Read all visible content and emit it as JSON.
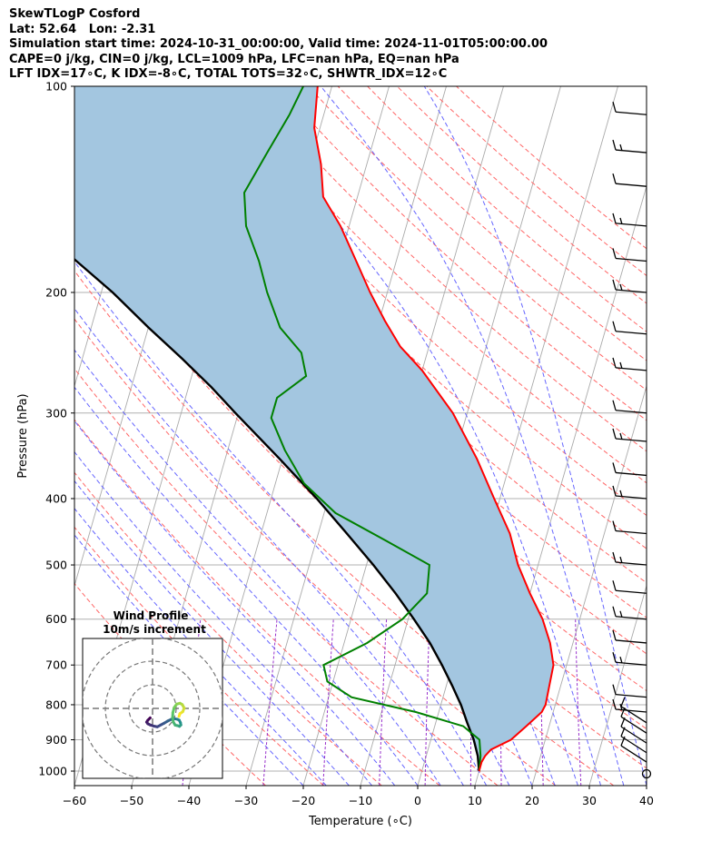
{
  "header": {
    "line1": "SkewTLogP Cosford",
    "line2": "Lat: 52.64   Lon: -2.31",
    "line3": "Simulation start time: 2024-10-31_00:00:00, Valid time: 2024-11-01T05:00:00.00",
    "line4": "CAPE=0 j/kg, CIN=0 j/kg, LCL=1009 hPa, LFC=nan hPa, EQ=nan hPa",
    "line5": "LFT IDX=17∘C, K IDX=-8∘C, TOTAL TOTS=32∘C, SHWTR_IDX=12∘C"
  },
  "chart_data": {
    "type": "line",
    "subtype": "skew-t log-p",
    "xlabel": "Temperature (∘C)",
    "ylabel": "Pressure (hPa)",
    "xlim": [
      -60,
      40
    ],
    "ylim": [
      1050,
      100
    ],
    "yscale": "log",
    "x_ticks": [
      -60,
      -50,
      -40,
      -30,
      -20,
      -10,
      0,
      10,
      20,
      30,
      40
    ],
    "x_tick_labels": [
      "−60",
      "−50",
      "−40",
      "−30",
      "−20",
      "−10",
      "0",
      "10",
      "20",
      "30",
      "40"
    ],
    "y_ticks": [
      1000,
      900,
      800,
      700,
      600,
      500,
      400,
      300,
      200,
      100
    ],
    "y_tick_labels": [
      "1000",
      "900",
      "800",
      "700",
      "600",
      "500",
      "400",
      "300",
      "200",
      "100"
    ],
    "grid": true,
    "colors": {
      "temperature": "#ff0000",
      "dewpoint": "#008000",
      "parcel": "#000000",
      "shade": "#a3c6e0",
      "dry_adiabat": "#ff6666",
      "moist_adiabat": "#6666ff",
      "mixing_ratio": "#9932cc",
      "isotherm": "#aaaaaa"
    },
    "series": [
      {
        "key": "temperature",
        "points": [
          [
            10,
            1000
          ],
          [
            10,
            970
          ],
          [
            10.3,
            950
          ],
          [
            11,
            930
          ],
          [
            14,
            900
          ],
          [
            16,
            860
          ],
          [
            18,
            820
          ],
          [
            18.3,
            800
          ],
          [
            18,
            750
          ],
          [
            17.7,
            700
          ],
          [
            16,
            650
          ],
          [
            13.5,
            600
          ],
          [
            10,
            550
          ],
          [
            6.5,
            500
          ],
          [
            3.5,
            450
          ],
          [
            -1,
            400
          ],
          [
            -6,
            350
          ],
          [
            -12.5,
            300
          ],
          [
            -20,
            260
          ],
          [
            -25,
            240
          ],
          [
            -29,
            220
          ],
          [
            -33,
            200
          ],
          [
            -37,
            180
          ],
          [
            -41.5,
            160
          ],
          [
            -46,
            145
          ],
          [
            -48,
            130
          ],
          [
            -51,
            115
          ],
          [
            -52.5,
            100
          ]
        ]
      },
      {
        "key": "dewpoint",
        "points": [
          [
            10,
            1000
          ],
          [
            9.5,
            950
          ],
          [
            8.5,
            900
          ],
          [
            5,
            860
          ],
          [
            -4,
            820
          ],
          [
            -16,
            780
          ],
          [
            -21,
            740
          ],
          [
            -22.5,
            700
          ],
          [
            -16,
            650
          ],
          [
            -11,
            600
          ],
          [
            -8,
            550
          ],
          [
            -9,
            500
          ],
          [
            -18,
            460
          ],
          [
            -28,
            420
          ],
          [
            -35,
            380
          ],
          [
            -40,
            340
          ],
          [
            -44,
            305
          ],
          [
            -44,
            285
          ],
          [
            -40,
            265
          ],
          [
            -42,
            245
          ],
          [
            -47,
            225
          ],
          [
            -51,
            200
          ],
          [
            -54,
            180
          ],
          [
            -58,
            160
          ],
          [
            -60,
            143
          ],
          [
            -58,
            125
          ],
          [
            -56,
            110
          ],
          [
            -55,
            100
          ]
        ]
      },
      {
        "key": "parcel",
        "points": [
          [
            10,
            1000
          ],
          [
            9,
            950
          ],
          [
            7.5,
            900
          ],
          [
            5.5,
            850
          ],
          [
            3.5,
            800
          ],
          [
            1,
            750
          ],
          [
            -1.8,
            700
          ],
          [
            -5,
            650
          ],
          [
            -9,
            600
          ],
          [
            -13.5,
            550
          ],
          [
            -18.8,
            500
          ],
          [
            -25,
            450
          ],
          [
            -32,
            400
          ],
          [
            -40.5,
            350
          ],
          [
            -50.5,
            300
          ],
          [
            -56,
            275
          ],
          [
            -62.5,
            250
          ],
          [
            -70,
            225
          ],
          [
            -78,
            200
          ],
          [
            -88,
            175
          ],
          [
            -99,
            150
          ],
          [
            -107,
            135
          ],
          [
            -115,
            120
          ],
          [
            -125,
            105
          ],
          [
            -129,
            100
          ]
        ]
      }
    ],
    "wind_barbs": {
      "pressures": [
        1000,
        970,
        940,
        910,
        880,
        850,
        820,
        780,
        700,
        650,
        600,
        550,
        500,
        450,
        400,
        370,
        330,
        300,
        260,
        230,
        200,
        180,
        160,
        140,
        125,
        110
      ]
    },
    "hodograph": {
      "title": "Wind Profile",
      "subtitle": "10m/s increment",
      "rings": [
        10,
        20,
        30
      ],
      "points": [
        [
          -1,
          -4
        ],
        [
          -2,
          -5
        ],
        [
          -2.5,
          -5.8
        ],
        [
          -2,
          -6.5
        ],
        [
          -1,
          -7
        ],
        [
          0.5,
          -7.5
        ],
        [
          2,
          -7.8
        ],
        [
          3.5,
          -7
        ],
        [
          5,
          -6.2
        ],
        [
          6.5,
          -5.3
        ],
        [
          8,
          -4.6
        ],
        [
          9.5,
          -4.4
        ],
        [
          10.5,
          -4.6
        ],
        [
          11.3,
          -5
        ],
        [
          11.8,
          -6
        ],
        [
          12,
          -7
        ],
        [
          11.4,
          -7.6
        ],
        [
          10.6,
          -7.3
        ],
        [
          9.6,
          -7.1
        ],
        [
          8.8,
          -5.8
        ],
        [
          8.5,
          -3.8
        ],
        [
          8.6,
          -1.8
        ],
        [
          9.2,
          0.4
        ],
        [
          10.2,
          1.8
        ],
        [
          11.6,
          2.2
        ],
        [
          12.6,
          1.6
        ],
        [
          13.4,
          0.2
        ],
        [
          12.8,
          -1.4
        ],
        [
          11.6,
          -2.2
        ],
        [
          11.2,
          -3.4
        ]
      ]
    }
  }
}
